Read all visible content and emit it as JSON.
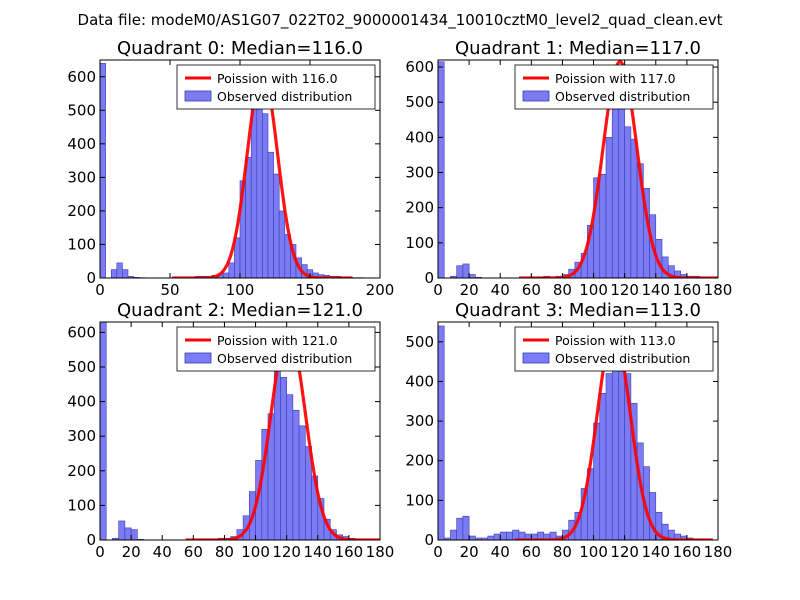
{
  "figure_title": "Data file: modeM0/AS1G07_022T02_9000001434_10010cztM0_level2_quad_clean.evt",
  "colors": {
    "bar_fill": "#7b7bf5",
    "bar_edge": "#3b3bb0",
    "line": "#ff0000",
    "frame": "#000000"
  },
  "legend_labels": {
    "line": "Poission with {median}",
    "bars": "Observed distribution"
  },
  "chart_data": [
    {
      "type": "bar",
      "title": "Quadrant 0: Median=116.0",
      "median": 116.0,
      "xlim": [
        0,
        200
      ],
      "ylim": [
        0,
        650
      ],
      "xticks": [
        0,
        50,
        100,
        150,
        200
      ],
      "yticks": [
        0,
        100,
        200,
        300,
        400,
        500,
        600
      ],
      "legend": [
        "Poission with 116.0",
        "Observed distribution"
      ],
      "bin_width": 4,
      "bin_starts": [
        0,
        4,
        8,
        12,
        16,
        20,
        24,
        28,
        32,
        36,
        40,
        44,
        48,
        52,
        56,
        60,
        64,
        68,
        72,
        76,
        80,
        84,
        88,
        92,
        96,
        100,
        104,
        108,
        112,
        116,
        120,
        124,
        128,
        132,
        136,
        140,
        144,
        148,
        152,
        156,
        160,
        164,
        168,
        172,
        176,
        180,
        184,
        188
      ],
      "values": [
        640,
        0,
        25,
        45,
        25,
        5,
        2,
        1,
        0,
        0,
        0,
        0,
        0,
        0,
        0,
        0,
        2,
        5,
        5,
        5,
        8,
        12,
        15,
        45,
        120,
        290,
        360,
        505,
        515,
        490,
        375,
        310,
        200,
        130,
        100,
        60,
        40,
        25,
        15,
        10,
        8,
        5,
        5,
        3,
        2,
        1,
        1,
        0
      ],
      "poisson_peak": 615
    },
    {
      "type": "bar",
      "title": "Quadrant 1: Median=117.0",
      "median": 117.0,
      "xlim": [
        0,
        180
      ],
      "ylim": [
        0,
        620
      ],
      "xticks": [
        0,
        20,
        40,
        60,
        80,
        100,
        120,
        140,
        160,
        180
      ],
      "yticks": [
        0,
        100,
        200,
        300,
        400,
        500,
        600
      ],
      "legend": [
        "Poission with 117.0",
        "Observed distribution"
      ],
      "bin_width": 4,
      "bin_starts": [
        0,
        4,
        8,
        12,
        16,
        20,
        24,
        28,
        32,
        36,
        40,
        44,
        48,
        52,
        56,
        60,
        64,
        68,
        72,
        76,
        80,
        84,
        88,
        92,
        96,
        100,
        104,
        108,
        112,
        116,
        120,
        124,
        128,
        132,
        136,
        140,
        144,
        148,
        152,
        156,
        160,
        164,
        168,
        172,
        176
      ],
      "values": [
        615,
        0,
        5,
        35,
        40,
        10,
        2,
        0,
        0,
        0,
        0,
        0,
        0,
        0,
        0,
        0,
        2,
        5,
        0,
        5,
        10,
        25,
        45,
        70,
        150,
        285,
        295,
        400,
        490,
        505,
        430,
        395,
        325,
        255,
        180,
        110,
        60,
        35,
        20,
        10,
        5,
        5,
        2,
        1,
        0
      ],
      "poisson_peak": 615
    },
    {
      "type": "bar",
      "title": "Quadrant 2: Median=121.0",
      "median": 121.0,
      "xlim": [
        0,
        180
      ],
      "ylim": [
        0,
        630
      ],
      "xticks": [
        0,
        20,
        40,
        60,
        80,
        100,
        120,
        140,
        160,
        180
      ],
      "yticks": [
        0,
        100,
        200,
        300,
        400,
        500,
        600
      ],
      "legend": [
        "Poission with 121.0",
        "Observed distribution"
      ],
      "bin_width": 4,
      "bin_starts": [
        0,
        4,
        8,
        12,
        16,
        20,
        24,
        28,
        32,
        36,
        40,
        44,
        48,
        52,
        56,
        60,
        64,
        68,
        72,
        76,
        80,
        84,
        88,
        92,
        96,
        100,
        104,
        108,
        112,
        116,
        120,
        124,
        128,
        132,
        136,
        140,
        144,
        148,
        152,
        156,
        160,
        164,
        168,
        172,
        176
      ],
      "values": [
        630,
        0,
        5,
        55,
        35,
        30,
        2,
        0,
        0,
        0,
        0,
        0,
        0,
        0,
        0,
        0,
        2,
        0,
        2,
        5,
        5,
        10,
        30,
        70,
        140,
        230,
        320,
        365,
        530,
        470,
        420,
        375,
        330,
        270,
        185,
        120,
        60,
        30,
        15,
        10,
        5,
        2,
        1,
        0,
        0
      ],
      "poisson_peak": 605
    },
    {
      "type": "bar",
      "title": "Quadrant 3: Median=113.0",
      "median": 113.0,
      "xlim": [
        0,
        180
      ],
      "ylim": [
        0,
        550
      ],
      "xticks": [
        0,
        20,
        40,
        60,
        80,
        100,
        120,
        140,
        160,
        180
      ],
      "yticks": [
        0,
        100,
        200,
        300,
        400,
        500
      ],
      "legend": [
        "Poission with 113.0",
        "Observed distribution"
      ],
      "bin_width": 4,
      "bin_starts": [
        0,
        4,
        8,
        12,
        16,
        20,
        24,
        28,
        32,
        36,
        40,
        44,
        48,
        52,
        56,
        60,
        64,
        68,
        72,
        76,
        80,
        84,
        88,
        92,
        96,
        100,
        104,
        108,
        112,
        116,
        120,
        124,
        128,
        132,
        136,
        140,
        144,
        148,
        152,
        156,
        160,
        164,
        168,
        172,
        176
      ],
      "values": [
        540,
        5,
        25,
        55,
        60,
        10,
        5,
        5,
        10,
        15,
        20,
        20,
        25,
        20,
        15,
        15,
        20,
        15,
        20,
        10,
        25,
        50,
        70,
        130,
        180,
        295,
        370,
        420,
        520,
        480,
        420,
        345,
        245,
        185,
        120,
        70,
        40,
        25,
        15,
        10,
        5,
        2,
        1,
        0,
        0
      ],
      "poisson_peak": 525
    }
  ]
}
